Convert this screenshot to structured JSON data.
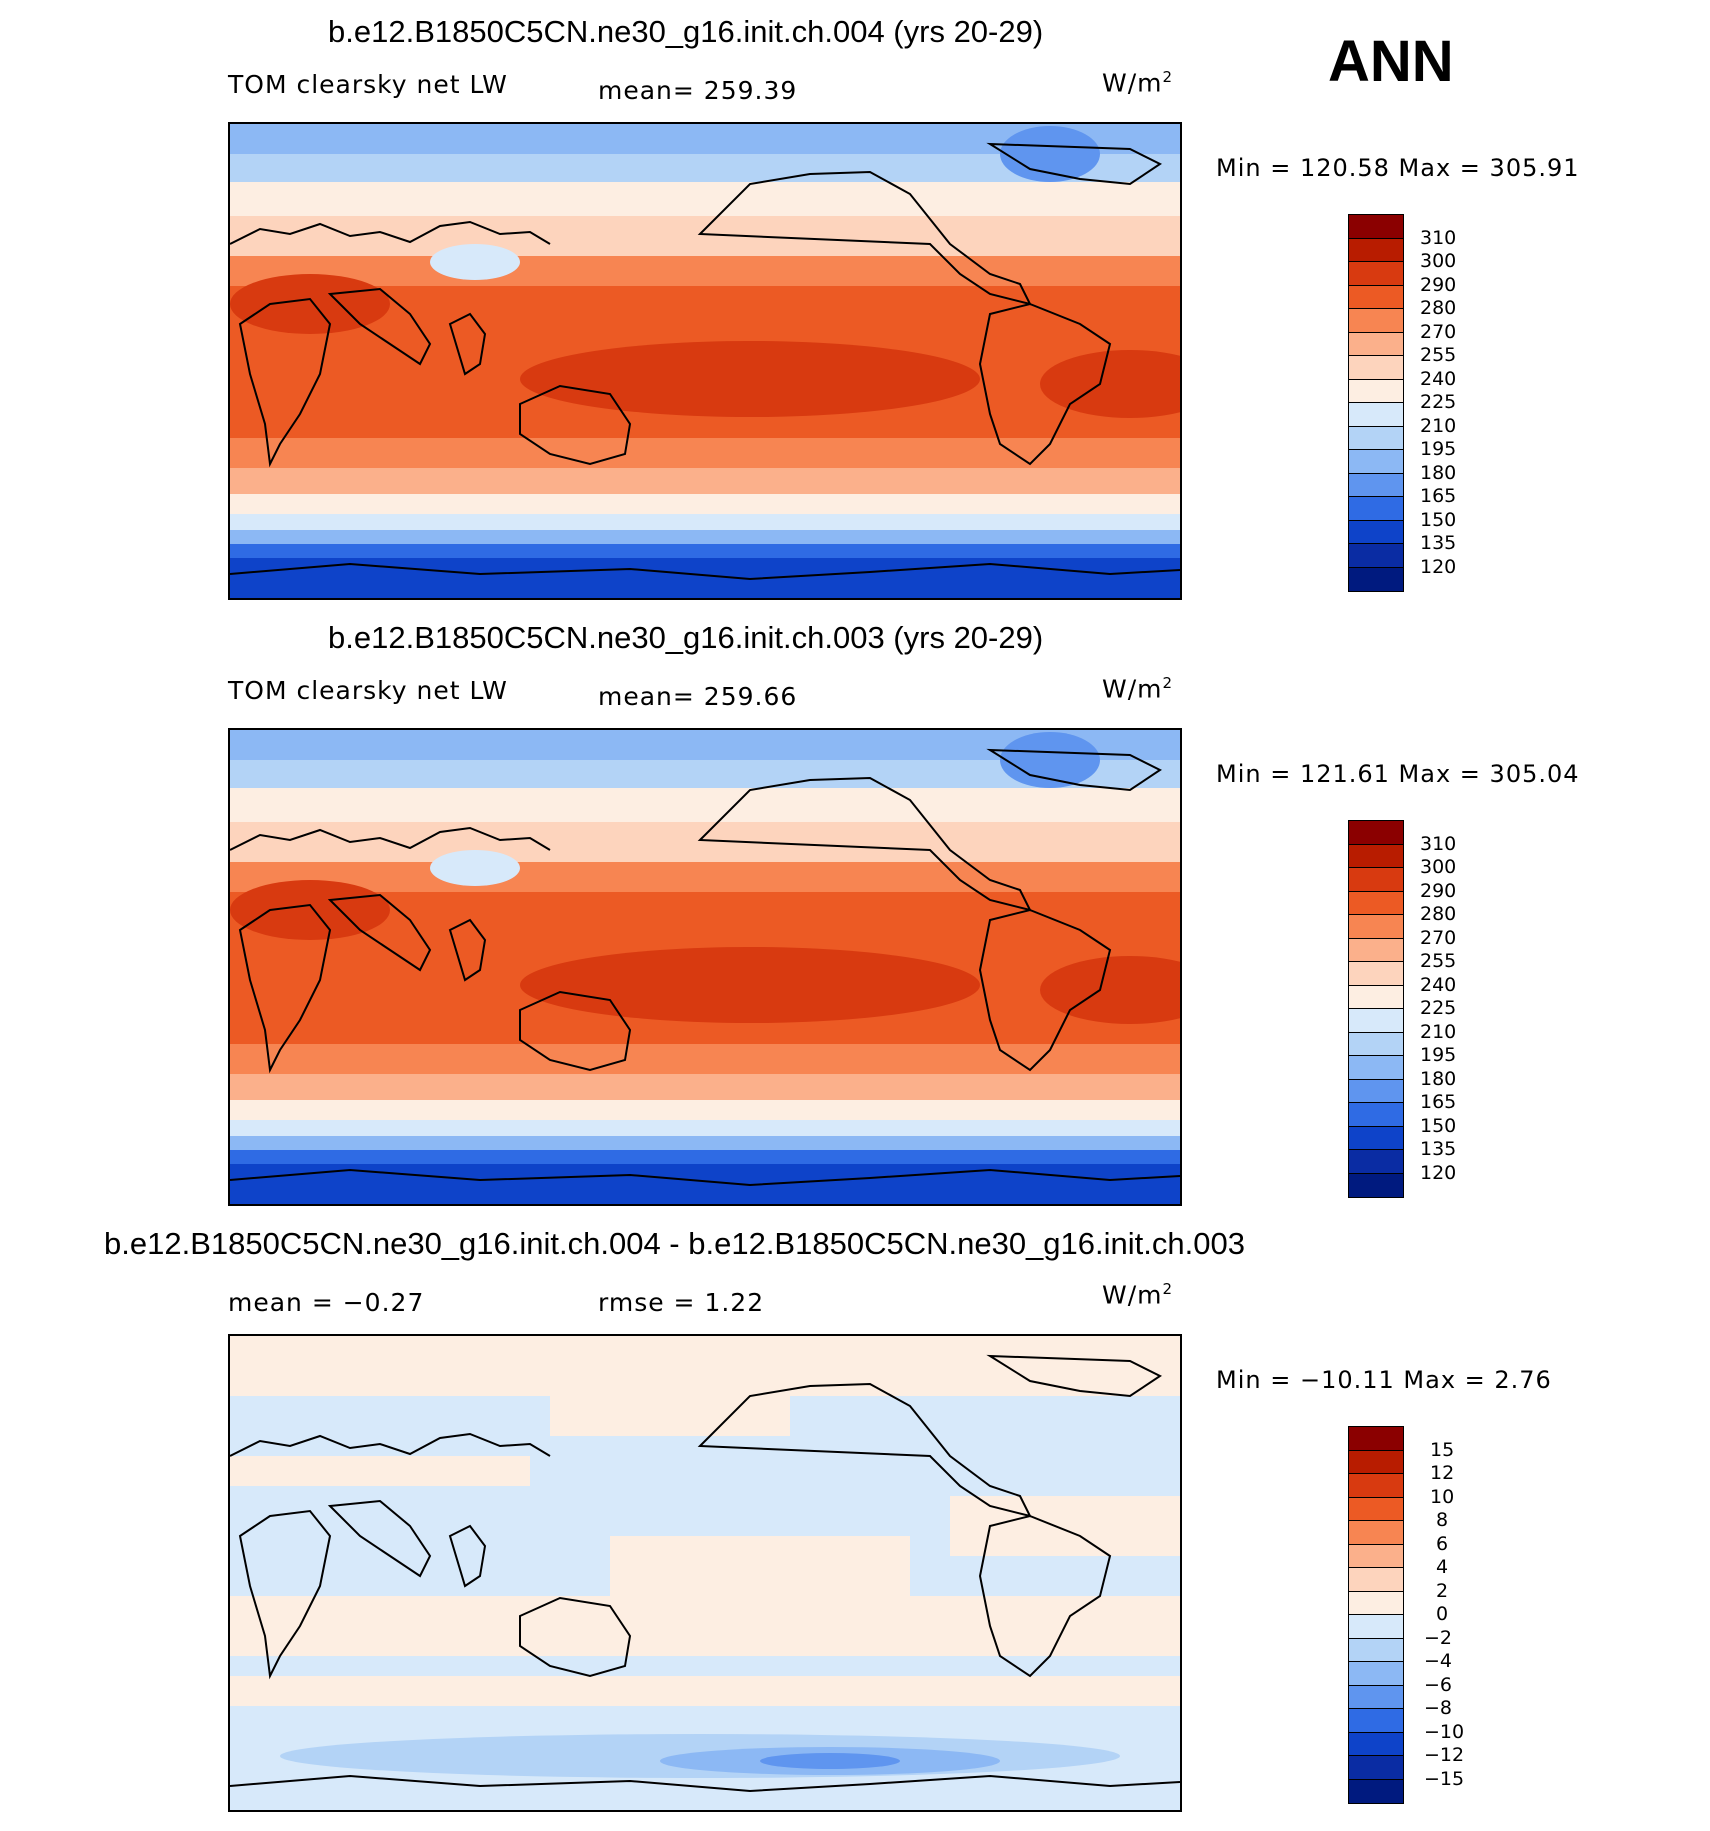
{
  "season": "ANN",
  "panels": [
    {
      "title": "b.e12.B1850C5CN.ne30_g16.init.ch.004 (yrs 20-29)",
      "left_label": "TOM clearsky net LW",
      "mid_label": "mean=  259.39",
      "units": "W/m",
      "units_sup": "2",
      "minmax": "Min  =  120.58  Max  =  305.91",
      "colorbar_labels": [
        "310",
        "300",
        "290",
        "280",
        "270",
        "255",
        "240",
        "225",
        "210",
        "195",
        "180",
        "165",
        "150",
        "135",
        "120"
      ],
      "colors": [
        "#8b0000",
        "#b81c00",
        "#d83a10",
        "#ec5a24",
        "#f78552",
        "#fbb08b",
        "#fdd4bd",
        "#fdeee2",
        "#d7e9fa",
        "#b3d3f6",
        "#8cb8f4",
        "#5f95ef",
        "#2f6be4",
        "#0e43c9",
        "#0a2ca3",
        "#001a7f"
      ]
    },
    {
      "title": "b.e12.B1850C5CN.ne30_g16.init.ch.003 (yrs 20-29)",
      "left_label": "TOM clearsky net LW",
      "mid_label": "mean=  259.66",
      "units": "W/m",
      "units_sup": "2",
      "minmax": "Min  =  121.61  Max  =  305.04",
      "colorbar_labels": [
        "310",
        "300",
        "290",
        "280",
        "270",
        "255",
        "240",
        "225",
        "210",
        "195",
        "180",
        "165",
        "150",
        "135",
        "120"
      ],
      "colors": [
        "#8b0000",
        "#b81c00",
        "#d83a10",
        "#ec5a24",
        "#f78552",
        "#fbb08b",
        "#fdd4bd",
        "#fdeee2",
        "#d7e9fa",
        "#b3d3f6",
        "#8cb8f4",
        "#5f95ef",
        "#2f6be4",
        "#0e43c9",
        "#0a2ca3",
        "#001a7f"
      ]
    },
    {
      "title": "b.e12.B1850C5CN.ne30_g16.init.ch.004 - b.e12.B1850C5CN.ne30_g16.init.ch.003",
      "left_label": "mean  =    −0.27",
      "mid_label": "rmse  =      1.22",
      "units": "W/m",
      "units_sup": "2",
      "minmax": "Min  =  −10.11  Max  =      2.76",
      "colorbar_labels": [
        "15",
        "12",
        "10",
        "8",
        "6",
        "4",
        "2",
        "0",
        "−2",
        "−4",
        "−6",
        "−8",
        "−10",
        "−12",
        "−15"
      ],
      "colors": [
        "#8b0000",
        "#b81c00",
        "#d83a10",
        "#ec5a24",
        "#f78552",
        "#fbb08b",
        "#fdd4bd",
        "#fdeee2",
        "#d7e9fa",
        "#b3d3f6",
        "#8cb8f4",
        "#5f95ef",
        "#2f6be4",
        "#0e43c9",
        "#0a2ca3",
        "#001a7f"
      ]
    }
  ]
}
